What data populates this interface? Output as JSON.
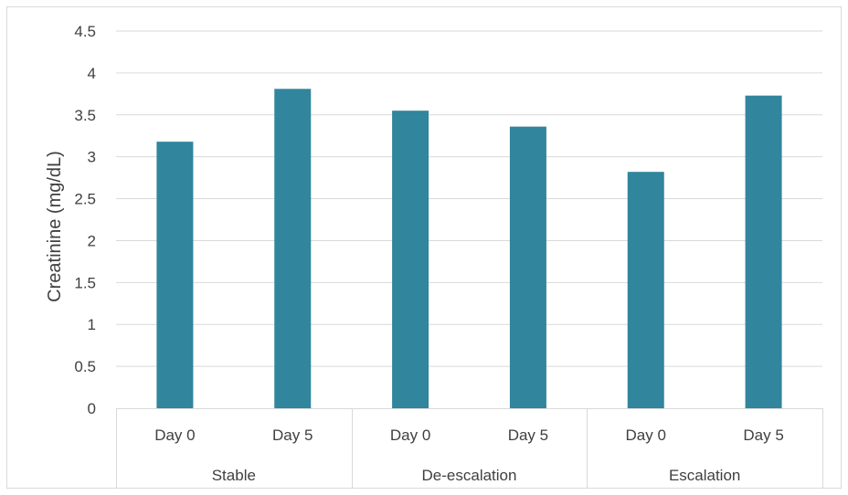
{
  "chart_data": {
    "type": "bar",
    "ylabel": "Creatinine (mg/dL)",
    "ylim": [
      0,
      4.5
    ],
    "yticks": [
      "0",
      "0.5",
      "1",
      "1.5",
      "2",
      "2.5",
      "3",
      "3.5",
      "4",
      "4.5"
    ],
    "grid": true,
    "legend": "none",
    "categories": [
      "Day 0",
      "Day 5",
      "Day 0",
      "Day 5",
      "Day 0",
      "Day 5"
    ],
    "groups": [
      {
        "label": "Stable",
        "categories": [
          "Day 0",
          "Day 5"
        ]
      },
      {
        "label": "De-escalation",
        "categories": [
          "Day 0",
          "Day 5"
        ]
      },
      {
        "label": "Escalation",
        "categories": [
          "Day 0",
          "Day 5"
        ]
      }
    ],
    "values": [
      3.18,
      3.81,
      3.55,
      3.36,
      2.82,
      3.73
    ],
    "bar_color": "#31859c",
    "grid_color": "#d9d9d9"
  }
}
